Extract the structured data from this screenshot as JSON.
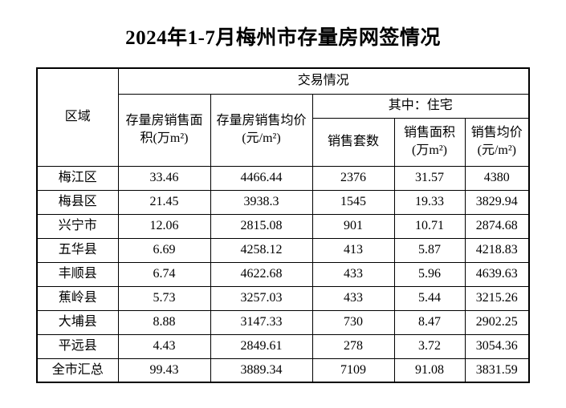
{
  "title": "2024年1-7月梅州市存量房网签情况",
  "table": {
    "header": {
      "region": "区域",
      "transaction_group": "交易情况",
      "residential_group": "其中：住宅",
      "stock_area": "存量房销售面\n积(万m²)",
      "stock_price": "存量房销售均价\n(元/m²)",
      "units_sold": "销售套数",
      "sales_area": "销售面积\n(万m²)",
      "sales_price": "销售均价\n(元/m²)"
    },
    "rows": [
      {
        "region": "梅江区",
        "values": [
          "33.46",
          "4466.44",
          "2376",
          "31.57",
          "4380"
        ]
      },
      {
        "region": "梅县区",
        "values": [
          "21.45",
          "3938.3",
          "1545",
          "19.33",
          "3829.94"
        ]
      },
      {
        "region": "兴宁市",
        "values": [
          "12.06",
          "2815.08",
          "901",
          "10.71",
          "2874.68"
        ]
      },
      {
        "region": "五华县",
        "values": [
          "6.69",
          "4258.12",
          "413",
          "5.87",
          "4218.83"
        ]
      },
      {
        "region": "丰顺县",
        "values": [
          "6.74",
          "4622.68",
          "433",
          "5.96",
          "4639.63"
        ]
      },
      {
        "region": "蕉岭县",
        "values": [
          "5.73",
          "3257.03",
          "433",
          "5.44",
          "3215.26"
        ]
      },
      {
        "region": "大埔县",
        "values": [
          "8.88",
          "3147.33",
          "730",
          "8.47",
          "2902.25"
        ]
      },
      {
        "region": "平远县",
        "values": [
          "4.43",
          "2849.61",
          "278",
          "3.72",
          "3054.36"
        ]
      },
      {
        "region": "全市汇总",
        "values": [
          "99.43",
          "3889.34",
          "7109",
          "91.08",
          "3831.59"
        ]
      }
    ]
  }
}
